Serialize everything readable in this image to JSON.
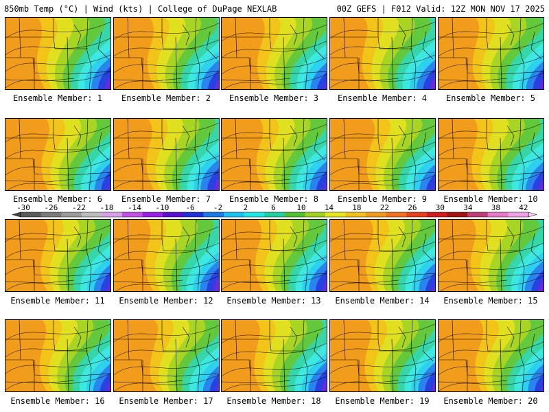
{
  "header": {
    "left": "850mb Temp (°C) | Wind (kts) | College of DuPage NEXLAB",
    "right": "00Z GEFS | F012 Valid: 12Z MON NOV 17 2025"
  },
  "panel_label_prefix": "Ensemble Member: ",
  "members": [
    1,
    2,
    3,
    4,
    5,
    6,
    7,
    8,
    9,
    10,
    11,
    12,
    13,
    14,
    15,
    16,
    17,
    18,
    19,
    20
  ],
  "colorbar": {
    "ticks": [
      "-30",
      "-26",
      "-22",
      "-18",
      "-14",
      "-10",
      "-6",
      "-2",
      "2",
      "6",
      "10",
      "14",
      "18",
      "22",
      "26",
      "30",
      "34",
      "38",
      "42"
    ],
    "colors": [
      "#5a5a5a",
      "#7a7a7a",
      "#9a9a9a",
      "#bcbcbc",
      "#d8a0e6",
      "#c050e6",
      "#9a1ee6",
      "#5a10d0",
      "#2030d8",
      "#1c78e6",
      "#1cc0f0",
      "#20e6e6",
      "#20d0a0",
      "#50c030",
      "#a0d020",
      "#e6e620",
      "#f0c01c",
      "#f09a1c",
      "#f07020",
      "#e64020",
      "#d01c1c",
      "#a01414",
      "#c03c78",
      "#e678c8",
      "#f0a0e6"
    ]
  },
  "fill_colors": {
    "purple": "#8a1ee6",
    "violet": "#6a28e0",
    "blue": "#2a40e0",
    "midblue": "#2a84ee",
    "cyan": "#2ed0f0",
    "aqua": "#3ce8e0",
    "teal": "#36d6a8",
    "green": "#64c83c",
    "lime": "#a8d424",
    "yellow": "#e0e020",
    "gold": "#f2c41a",
    "orange": "#f29c1c"
  }
}
